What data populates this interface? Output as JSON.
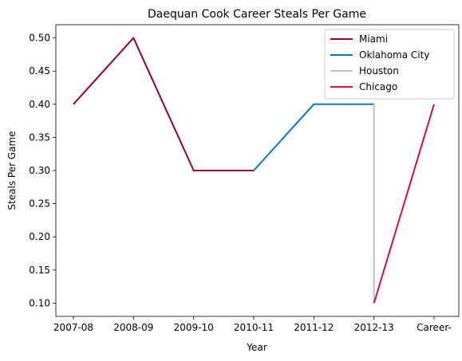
{
  "chart_data": {
    "type": "line",
    "title": "Daequan Cook Career Steals Per Game",
    "xlabel": "Year",
    "ylabel": "Steals Per Game",
    "categories": [
      "2007-08",
      "2008-09",
      "2009-10",
      "2010-11",
      "2011-12",
      "2012-13",
      "Career-"
    ],
    "ylim": [
      0.08,
      0.52
    ],
    "yticks": [
      0.1,
      0.15,
      0.2,
      0.25,
      0.3,
      0.35,
      0.4,
      0.45,
      0.5
    ],
    "grid": false,
    "legend_position": "top-right",
    "series": [
      {
        "name": "Miami",
        "color": "#98002E",
        "points": [
          [
            "2007-08",
            0.4
          ],
          [
            "2008-09",
            0.5
          ],
          [
            "2009-10",
            0.3
          ],
          [
            "2010-11",
            0.3
          ]
        ]
      },
      {
        "name": "Oklahoma City",
        "color": "#007AC1",
        "points": [
          [
            "2010-11",
            0.3
          ],
          [
            "2011-12",
            0.4
          ],
          [
            "2012-13",
            0.4
          ]
        ]
      },
      {
        "name": "Houston",
        "color": "#BEBEBE",
        "points": [
          [
            "2012-13",
            0.4
          ],
          [
            "2012-13",
            0.1
          ]
        ]
      },
      {
        "name": "Chicago",
        "color": "#CE1141",
        "points": [
          [
            "2012-13",
            0.1
          ],
          [
            "Career-",
            0.4
          ]
        ]
      }
    ]
  }
}
